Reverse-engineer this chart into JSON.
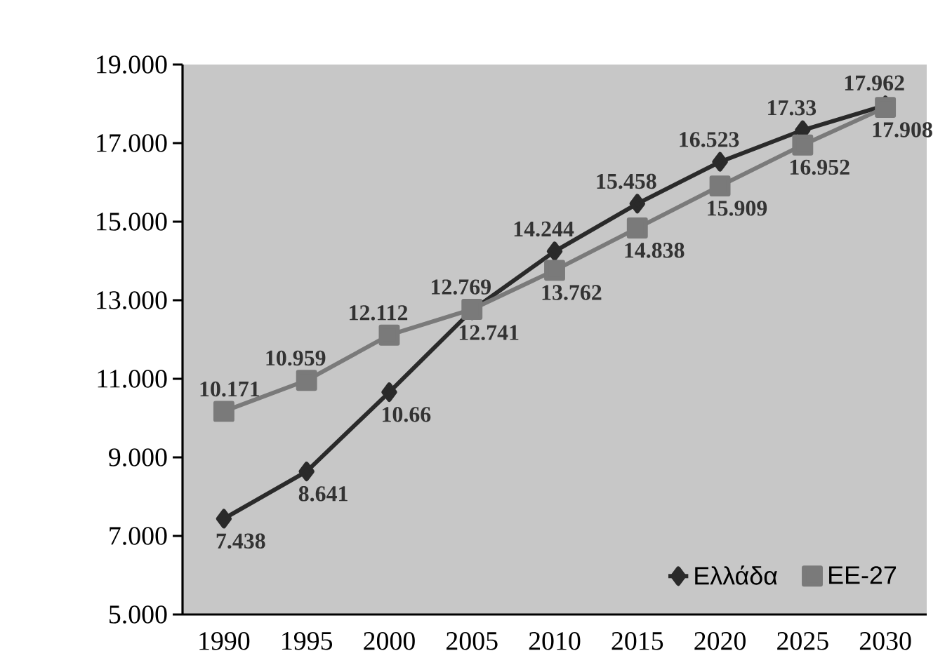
{
  "chart_data": {
    "type": "line",
    "categories": [
      "1990",
      "1995",
      "2000",
      "2005",
      "2010",
      "2015",
      "2020",
      "2025",
      "2030"
    ],
    "series": [
      {
        "name": "Ελλάδα",
        "color": "#2a2a2a",
        "marker": "diamond",
        "values": [
          7.438,
          8.641,
          10.66,
          12.741,
          14.244,
          15.458,
          16.523,
          17.33,
          17.962
        ],
        "value_labels": [
          "7.438",
          "8.641",
          "10.66",
          "12.741",
          "14.244",
          "15.458",
          "16.523",
          "17.33",
          "17.962"
        ]
      },
      {
        "name": "ΕΕ-27",
        "color": "#7a7a7a",
        "marker": "square",
        "values": [
          10.171,
          10.959,
          12.112,
          12.769,
          13.762,
          14.838,
          15.909,
          16.952,
          17.908
        ],
        "value_labels": [
          "10.171",
          "10.959",
          "12.112",
          "12.769",
          "13.762",
          "14.838",
          "15.909",
          "16.952",
          "17.908"
        ]
      }
    ],
    "ylim": [
      5,
      19
    ],
    "yticks": [
      {
        "value": 5,
        "label": "5.000"
      },
      {
        "value": 7,
        "label": "7.000"
      },
      {
        "value": 9,
        "label": "9.000"
      },
      {
        "value": 11,
        "label": "11.000"
      },
      {
        "value": 13,
        "label": "13.000"
      },
      {
        "value": 15,
        "label": "15.000"
      },
      {
        "value": 17,
        "label": "17.000"
      },
      {
        "value": 19,
        "label": "19.000"
      }
    ],
    "grid": false,
    "legend": "bottom right",
    "line_style": "solid"
  }
}
